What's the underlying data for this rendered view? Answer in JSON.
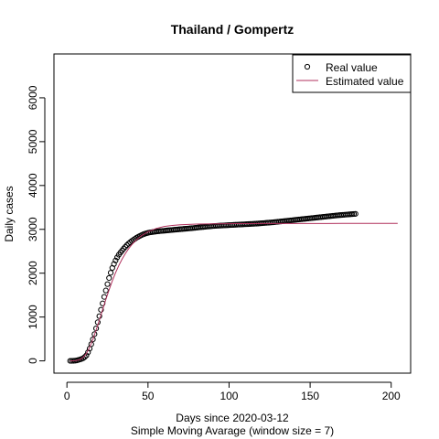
{
  "chart_data": {
    "type": "scatter",
    "title": "Thailand / Gompertz",
    "xlabel": "Days since 2020-03-12",
    "xlabel_sub": "Simple Moving Avarage (window size = 7)",
    "ylabel": "Daily cases",
    "xlim": [
      -8,
      212
    ],
    "ylim": [
      -280,
      7000
    ],
    "x_ticks": [
      0,
      50,
      100,
      150,
      200
    ],
    "y_ticks": [
      0,
      1000,
      2000,
      3000,
      4000,
      5000,
      6000
    ],
    "grid": false,
    "legend_position": "top-right",
    "series": [
      {
        "name": "Real value",
        "kind": "points",
        "color": "#000000",
        "x_start": 2,
        "x_step": 1,
        "y": [
          0,
          0,
          2,
          5,
          10,
          20,
          32,
          44,
          60,
          88,
          125,
          195,
          280,
          380,
          490,
          610,
          740,
          880,
          1020,
          1165,
          1310,
          1460,
          1605,
          1750,
          1890,
          2010,
          2120,
          2210,
          2290,
          2360,
          2420,
          2470,
          2515,
          2560,
          2600,
          2640,
          2675,
          2705,
          2735,
          2760,
          2785,
          2810,
          2830,
          2850,
          2868,
          2885,
          2898,
          2910,
          2920,
          2928,
          2934,
          2940,
          2945,
          2950,
          2954,
          2958,
          2962,
          2965,
          2968,
          2972,
          2976,
          2980,
          2983,
          2986,
          2990,
          2993,
          2996,
          3000,
          3003,
          3006,
          3010,
          3013,
          3016,
          3020,
          3023,
          3026,
          3030,
          3034,
          3038,
          3042,
          3046,
          3050,
          3053,
          3057,
          3061,
          3065,
          3068,
          3071,
          3074,
          3077,
          3080,
          3082,
          3084,
          3086,
          3088,
          3090,
          3092,
          3094,
          3096,
          3098,
          3100,
          3102,
          3104,
          3106,
          3108,
          3110,
          3112,
          3114,
          3116,
          3118,
          3120,
          3122,
          3124,
          3126,
          3128,
          3130,
          3133,
          3136,
          3139,
          3142,
          3145,
          3148,
          3151,
          3154,
          3157,
          3160,
          3164,
          3168,
          3172,
          3176,
          3180,
          3184,
          3188,
          3192,
          3196,
          3200,
          3204,
          3208,
          3212,
          3216,
          3220,
          3224,
          3228,
          3232,
          3236,
          3240,
          3244,
          3248,
          3252,
          3256,
          3260,
          3264,
          3268,
          3272,
          3276,
          3280,
          3284,
          3288,
          3292,
          3296,
          3300,
          3304,
          3308,
          3312,
          3316,
          3320,
          3323,
          3326,
          3329,
          3332,
          3335,
          3338,
          3341,
          3344,
          3347,
          3350,
          3353
        ]
      },
      {
        "name": "Estimated value",
        "kind": "line",
        "color": "#b0305c",
        "x": [
          2,
          5,
          8,
          10,
          12,
          14,
          16,
          18,
          20,
          22,
          24,
          26,
          28,
          30,
          32,
          34,
          36,
          38,
          40,
          43,
          46,
          50,
          55,
          60,
          65,
          70,
          80,
          90,
          100,
          110,
          120,
          130,
          140,
          150,
          160,
          170,
          180,
          190,
          200,
          204
        ],
        "y": [
          0,
          5,
          30,
          80,
          170,
          310,
          490,
          700,
          930,
          1165,
          1400,
          1620,
          1825,
          2010,
          2175,
          2320,
          2445,
          2555,
          2650,
          2765,
          2855,
          2945,
          3020,
          3065,
          3090,
          3105,
          3120,
          3126,
          3129,
          3131,
          3132,
          3133,
          3134,
          3134,
          3134,
          3135,
          3135,
          3135,
          3135,
          3135
        ]
      }
    ]
  }
}
